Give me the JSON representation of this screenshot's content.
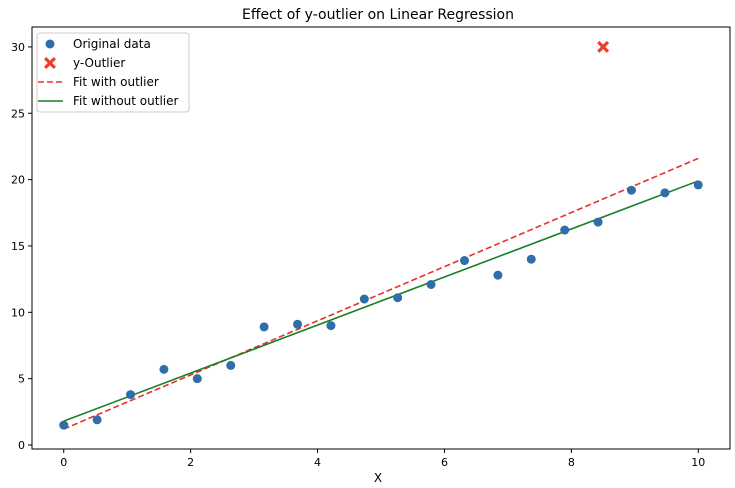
{
  "chart_data": {
    "type": "scatter",
    "title": "Effect of y-outlier on Linear Regression",
    "xlabel": "X",
    "ylabel": "",
    "xlim": [
      -0.5,
      10.5
    ],
    "ylim": [
      -0.3,
      31.5
    ],
    "x_ticks": [
      0,
      2,
      4,
      6,
      8,
      10
    ],
    "y_ticks": [
      0,
      5,
      10,
      15,
      20,
      25,
      30
    ],
    "x_tick_labels": [
      "0",
      "2",
      "4",
      "6",
      "8",
      "10"
    ],
    "y_tick_labels": [
      "0",
      "5",
      "10",
      "15",
      "20",
      "25",
      "30"
    ],
    "grid": false,
    "legend_position": "top-left",
    "legend": [
      "Original data",
      "y-Outlier",
      "Fit with outlier",
      "Fit without outlier"
    ],
    "series": [
      {
        "name": "Original data",
        "kind": "scatter",
        "color": "#2f6ea8",
        "x": [
          0.0,
          0.526,
          1.053,
          1.579,
          2.105,
          2.632,
          3.158,
          3.684,
          4.211,
          4.737,
          5.263,
          5.789,
          6.316,
          6.842,
          7.368,
          7.895,
          8.421,
          8.947,
          9.474,
          10.0
        ],
        "y": [
          1.5,
          1.9,
          3.8,
          5.7,
          5.0,
          6.0,
          8.9,
          9.1,
          9.0,
          11.0,
          11.1,
          12.1,
          13.9,
          12.8,
          14.0,
          16.2,
          16.8,
          19.2,
          19.0,
          19.6
        ]
      },
      {
        "name": "y-Outlier",
        "kind": "marker-x",
        "color": "#f03c2e",
        "x": [
          8.5
        ],
        "y": [
          30.0
        ]
      },
      {
        "name": "Fit with outlier",
        "kind": "line-dashed",
        "color": "#e8302a",
        "x": [
          0,
          10
        ],
        "y": [
          1.2,
          21.6
        ]
      },
      {
        "name": "Fit without outlier",
        "kind": "line",
        "color": "#1a7f27",
        "x": [
          0,
          10
        ],
        "y": [
          1.8,
          19.9
        ]
      }
    ]
  }
}
